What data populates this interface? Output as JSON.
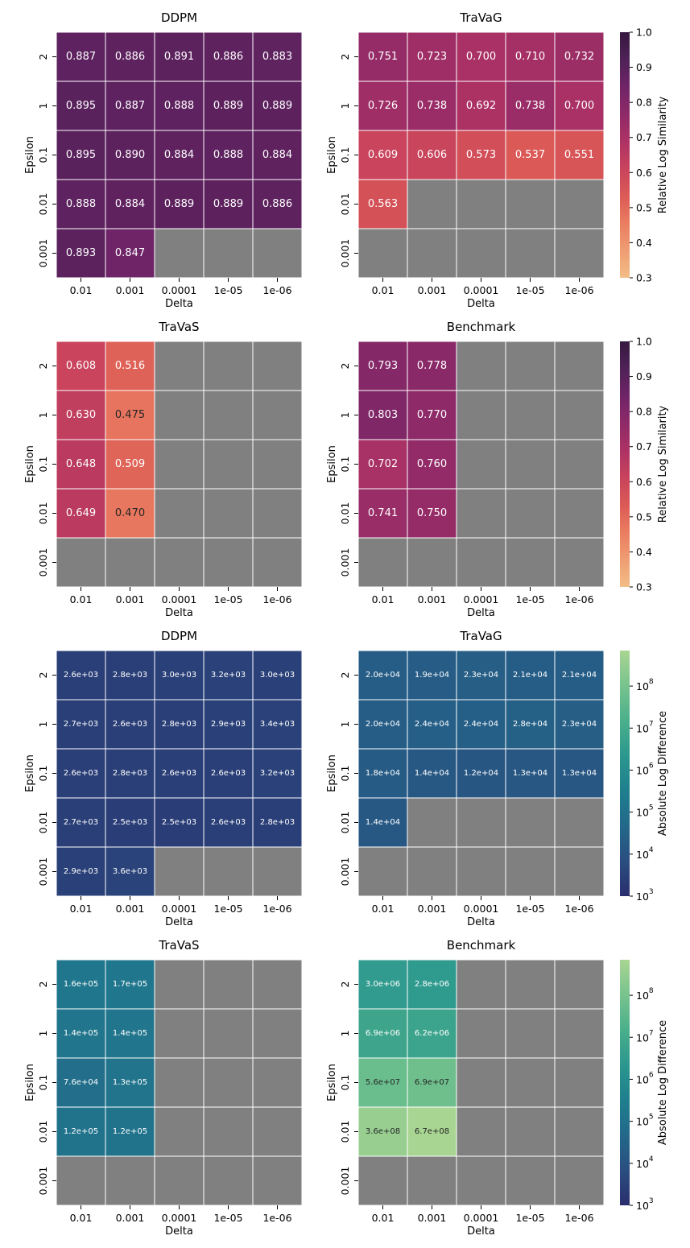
{
  "chart_data": [
    {
      "type": "heatmap",
      "title": "DDPM",
      "xlabel": "Delta",
      "ylabel": "Epsilon",
      "metric": "similarity",
      "x_categories": [
        "0.01",
        "0.001",
        "0.0001",
        "1e-05",
        "1e-06"
      ],
      "y_categories": [
        "2",
        "1",
        "0.1",
        "0.01",
        "0.001"
      ],
      "values": [
        [
          0.887,
          0.886,
          0.891,
          0.886,
          0.883
        ],
        [
          0.895,
          0.887,
          0.888,
          0.889,
          0.889
        ],
        [
          0.895,
          0.89,
          0.884,
          0.888,
          0.884
        ],
        [
          0.888,
          0.884,
          0.889,
          0.889,
          0.886
        ],
        [
          0.893,
          0.847,
          null,
          null,
          null
        ]
      ],
      "labels": [
        [
          "0.887",
          "0.886",
          "0.891",
          "0.886",
          "0.883"
        ],
        [
          "0.895",
          "0.887",
          "0.888",
          "0.889",
          "0.889"
        ],
        [
          "0.895",
          "0.890",
          "0.884",
          "0.888",
          "0.884"
        ],
        [
          "0.888",
          "0.884",
          "0.889",
          "0.889",
          "0.886"
        ],
        [
          "0.893",
          "0.847",
          null,
          null,
          null
        ]
      ]
    },
    {
      "type": "heatmap",
      "title": "TraVaG",
      "xlabel": "Delta",
      "ylabel": "Epsilon",
      "metric": "similarity",
      "x_categories": [
        "0.01",
        "0.001",
        "0.0001",
        "1e-05",
        "1e-06"
      ],
      "y_categories": [
        "2",
        "1",
        "0.1",
        "0.01",
        "0.001"
      ],
      "values": [
        [
          0.751,
          0.723,
          0.7,
          0.71,
          0.732
        ],
        [
          0.726,
          0.738,
          0.692,
          0.738,
          0.7
        ],
        [
          0.609,
          0.606,
          0.573,
          0.537,
          0.551
        ],
        [
          0.563,
          null,
          null,
          null,
          null
        ],
        [
          null,
          null,
          null,
          null,
          null
        ]
      ],
      "labels": [
        [
          "0.751",
          "0.723",
          "0.700",
          "0.710",
          "0.732"
        ],
        [
          "0.726",
          "0.738",
          "0.692",
          "0.738",
          "0.700"
        ],
        [
          "0.609",
          "0.606",
          "0.573",
          "0.537",
          "0.551"
        ],
        [
          "0.563",
          null,
          null,
          null,
          null
        ],
        [
          null,
          null,
          null,
          null,
          null
        ]
      ]
    },
    {
      "type": "heatmap",
      "title": "TraVaS",
      "xlabel": "Delta",
      "ylabel": "Epsilon",
      "metric": "similarity",
      "x_categories": [
        "0.01",
        "0.001",
        "0.0001",
        "1e-05",
        "1e-06"
      ],
      "y_categories": [
        "2",
        "1",
        "0.1",
        "0.01",
        "0.001"
      ],
      "values": [
        [
          0.608,
          0.516,
          null,
          null,
          null
        ],
        [
          0.63,
          0.475,
          null,
          null,
          null
        ],
        [
          0.648,
          0.509,
          null,
          null,
          null
        ],
        [
          0.649,
          0.47,
          null,
          null,
          null
        ],
        [
          null,
          null,
          null,
          null,
          null
        ]
      ],
      "labels": [
        [
          "0.608",
          "0.516",
          null,
          null,
          null
        ],
        [
          "0.630",
          "0.475",
          null,
          null,
          null
        ],
        [
          "0.648",
          "0.509",
          null,
          null,
          null
        ],
        [
          "0.649",
          "0.470",
          null,
          null,
          null
        ],
        [
          null,
          null,
          null,
          null,
          null
        ]
      ]
    },
    {
      "type": "heatmap",
      "title": "Benchmark",
      "xlabel": "Delta",
      "ylabel": "Epsilon",
      "metric": "similarity",
      "x_categories": [
        "0.01",
        "0.001",
        "0.0001",
        "1e-05",
        "1e-06"
      ],
      "y_categories": [
        "2",
        "1",
        "0.1",
        "0.01",
        "0.001"
      ],
      "values": [
        [
          0.793,
          0.778,
          null,
          null,
          null
        ],
        [
          0.803,
          0.77,
          null,
          null,
          null
        ],
        [
          0.702,
          0.76,
          null,
          null,
          null
        ],
        [
          0.741,
          0.75,
          null,
          null,
          null
        ],
        [
          null,
          null,
          null,
          null,
          null
        ]
      ],
      "labels": [
        [
          "0.793",
          "0.778",
          null,
          null,
          null
        ],
        [
          "0.803",
          "0.770",
          null,
          null,
          null
        ],
        [
          "0.702",
          "0.760",
          null,
          null,
          null
        ],
        [
          "0.741",
          "0.750",
          null,
          null,
          null
        ],
        [
          null,
          null,
          null,
          null,
          null
        ]
      ]
    },
    {
      "type": "heatmap",
      "title": "DDPM",
      "xlabel": "Delta",
      "ylabel": "Epsilon",
      "metric": "difference",
      "scale": "log",
      "x_categories": [
        "0.01",
        "0.001",
        "0.0001",
        "1e-05",
        "1e-06"
      ],
      "y_categories": [
        "2",
        "1",
        "0.1",
        "0.01",
        "0.001"
      ],
      "values": [
        [
          2600,
          2800,
          3000,
          3200,
          3000
        ],
        [
          2700,
          2600,
          2800,
          2900,
          3400
        ],
        [
          2600,
          2800,
          2600,
          2600,
          3200
        ],
        [
          2700,
          2500,
          2500,
          2600,
          2800
        ],
        [
          2900,
          3600,
          null,
          null,
          null
        ]
      ],
      "labels": [
        [
          "2.6e+03",
          "2.8e+03",
          "3.0e+03",
          "3.2e+03",
          "3.0e+03"
        ],
        [
          "2.7e+03",
          "2.6e+03",
          "2.8e+03",
          "2.9e+03",
          "3.4e+03"
        ],
        [
          "2.6e+03",
          "2.8e+03",
          "2.6e+03",
          "2.6e+03",
          "3.2e+03"
        ],
        [
          "2.7e+03",
          "2.5e+03",
          "2.5e+03",
          "2.6e+03",
          "2.8e+03"
        ],
        [
          "2.9e+03",
          "3.6e+03",
          null,
          null,
          null
        ]
      ]
    },
    {
      "type": "heatmap",
      "title": "TraVaG",
      "xlabel": "Delta",
      "ylabel": "Epsilon",
      "metric": "difference",
      "scale": "log",
      "x_categories": [
        "0.01",
        "0.001",
        "0.0001",
        "1e-05",
        "1e-06"
      ],
      "y_categories": [
        "2",
        "1",
        "0.1",
        "0.01",
        "0.001"
      ],
      "values": [
        [
          20000,
          19000,
          23000,
          21000,
          21000
        ],
        [
          20000,
          24000,
          24000,
          28000,
          23000
        ],
        [
          18000,
          14000,
          12000,
          13000,
          13000
        ],
        [
          14000,
          null,
          null,
          null,
          null
        ],
        [
          null,
          null,
          null,
          null,
          null
        ]
      ],
      "labels": [
        [
          "2.0e+04",
          "1.9e+04",
          "2.3e+04",
          "2.1e+04",
          "2.1e+04"
        ],
        [
          "2.0e+04",
          "2.4e+04",
          "2.4e+04",
          "2.8e+04",
          "2.3e+04"
        ],
        [
          "1.8e+04",
          "1.4e+04",
          "1.2e+04",
          "1.3e+04",
          "1.3e+04"
        ],
        [
          "1.4e+04",
          null,
          null,
          null,
          null
        ],
        [
          null,
          null,
          null,
          null,
          null
        ]
      ]
    },
    {
      "type": "heatmap",
      "title": "TraVaS",
      "xlabel": "Delta",
      "ylabel": "Epsilon",
      "metric": "difference",
      "scale": "log",
      "x_categories": [
        "0.01",
        "0.001",
        "0.0001",
        "1e-05",
        "1e-06"
      ],
      "y_categories": [
        "2",
        "1",
        "0.1",
        "0.01",
        "0.001"
      ],
      "values": [
        [
          160000,
          170000,
          null,
          null,
          null
        ],
        [
          140000,
          140000,
          null,
          null,
          null
        ],
        [
          76000,
          130000,
          null,
          null,
          null
        ],
        [
          120000,
          120000,
          null,
          null,
          null
        ],
        [
          null,
          null,
          null,
          null,
          null
        ]
      ],
      "labels": [
        [
          "1.6e+05",
          "1.7e+05",
          null,
          null,
          null
        ],
        [
          "1.4e+05",
          "1.4e+05",
          null,
          null,
          null
        ],
        [
          "7.6e+04",
          "1.3e+05",
          null,
          null,
          null
        ],
        [
          "1.2e+05",
          "1.2e+05",
          null,
          null,
          null
        ],
        [
          null,
          null,
          null,
          null,
          null
        ]
      ]
    },
    {
      "type": "heatmap",
      "title": "Benchmark",
      "xlabel": "Delta",
      "ylabel": "Epsilon",
      "metric": "difference",
      "scale": "log",
      "x_categories": [
        "0.01",
        "0.001",
        "0.0001",
        "1e-05",
        "1e-06"
      ],
      "y_categories": [
        "2",
        "1",
        "0.1",
        "0.01",
        "0.001"
      ],
      "values": [
        [
          3000000,
          2800000,
          null,
          null,
          null
        ],
        [
          6900000,
          6200000,
          null,
          null,
          null
        ],
        [
          56000000,
          69000000,
          null,
          null,
          null
        ],
        [
          360000000,
          670000000,
          null,
          null,
          null
        ],
        [
          null,
          null,
          null,
          null,
          null
        ]
      ],
      "labels": [
        [
          "3.0e+06",
          "2.8e+06",
          null,
          null,
          null
        ],
        [
          "6.9e+06",
          "6.2e+06",
          null,
          null,
          null
        ],
        [
          "5.6e+07",
          "6.9e+07",
          null,
          null,
          null
        ],
        [
          "3.6e+08",
          "6.7e+08",
          null,
          null,
          null
        ],
        [
          null,
          null,
          null,
          null,
          null
        ]
      ]
    }
  ],
  "colorbars": [
    {
      "label": "Relative Log Similarity",
      "scale": "linear",
      "range": [
        0.3,
        1.0
      ],
      "ticks": [
        "0.3",
        "0.4",
        "0.5",
        "0.6",
        "0.7",
        "0.8",
        "0.9",
        "1.0"
      ],
      "colormap": [
        "#f3bd86",
        "#ef9d72",
        "#ea7d60",
        "#dc5a56",
        "#c8435c",
        "#ad3264",
        "#8f2a68",
        "#6f2467",
        "#4f2158",
        "#36193f"
      ]
    },
    {
      "label": "Absolute Log Difference",
      "scale": "log",
      "range": [
        1000,
        700000000
      ],
      "ticks": [
        {
          "value": 1000,
          "base": "10",
          "exp": "3"
        },
        {
          "value": 10000,
          "base": "10",
          "exp": "4"
        },
        {
          "value": 100000,
          "base": "10",
          "exp": "5"
        },
        {
          "value": 1000000,
          "base": "10",
          "exp": "6"
        },
        {
          "value": 10000000,
          "base": "10",
          "exp": "7"
        },
        {
          "value": 100000000,
          "base": "10",
          "exp": "8"
        }
      ],
      "colormap": [
        "#2a2e6e",
        "#2a4e80",
        "#23688a",
        "#1f7f8e",
        "#2b978e",
        "#4aaf8b",
        "#78c38e",
        "#a9d592"
      ]
    }
  ],
  "missing_color": "#808080"
}
